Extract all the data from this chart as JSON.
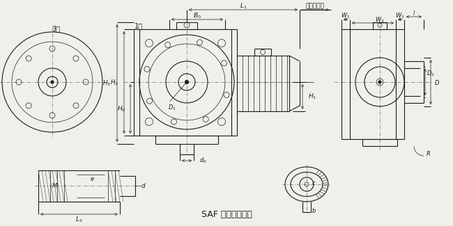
{
  "title": "SAF 型蜗杆减速器",
  "bg_color": "#f0f0eb",
  "line_color": "#1a1a1a",
  "font_size_label": 6.5,
  "font_size_title": 9,
  "label_1xing": "1型",
  "label_3xing": "3型",
  "label_jidian": "按电机尺寸"
}
